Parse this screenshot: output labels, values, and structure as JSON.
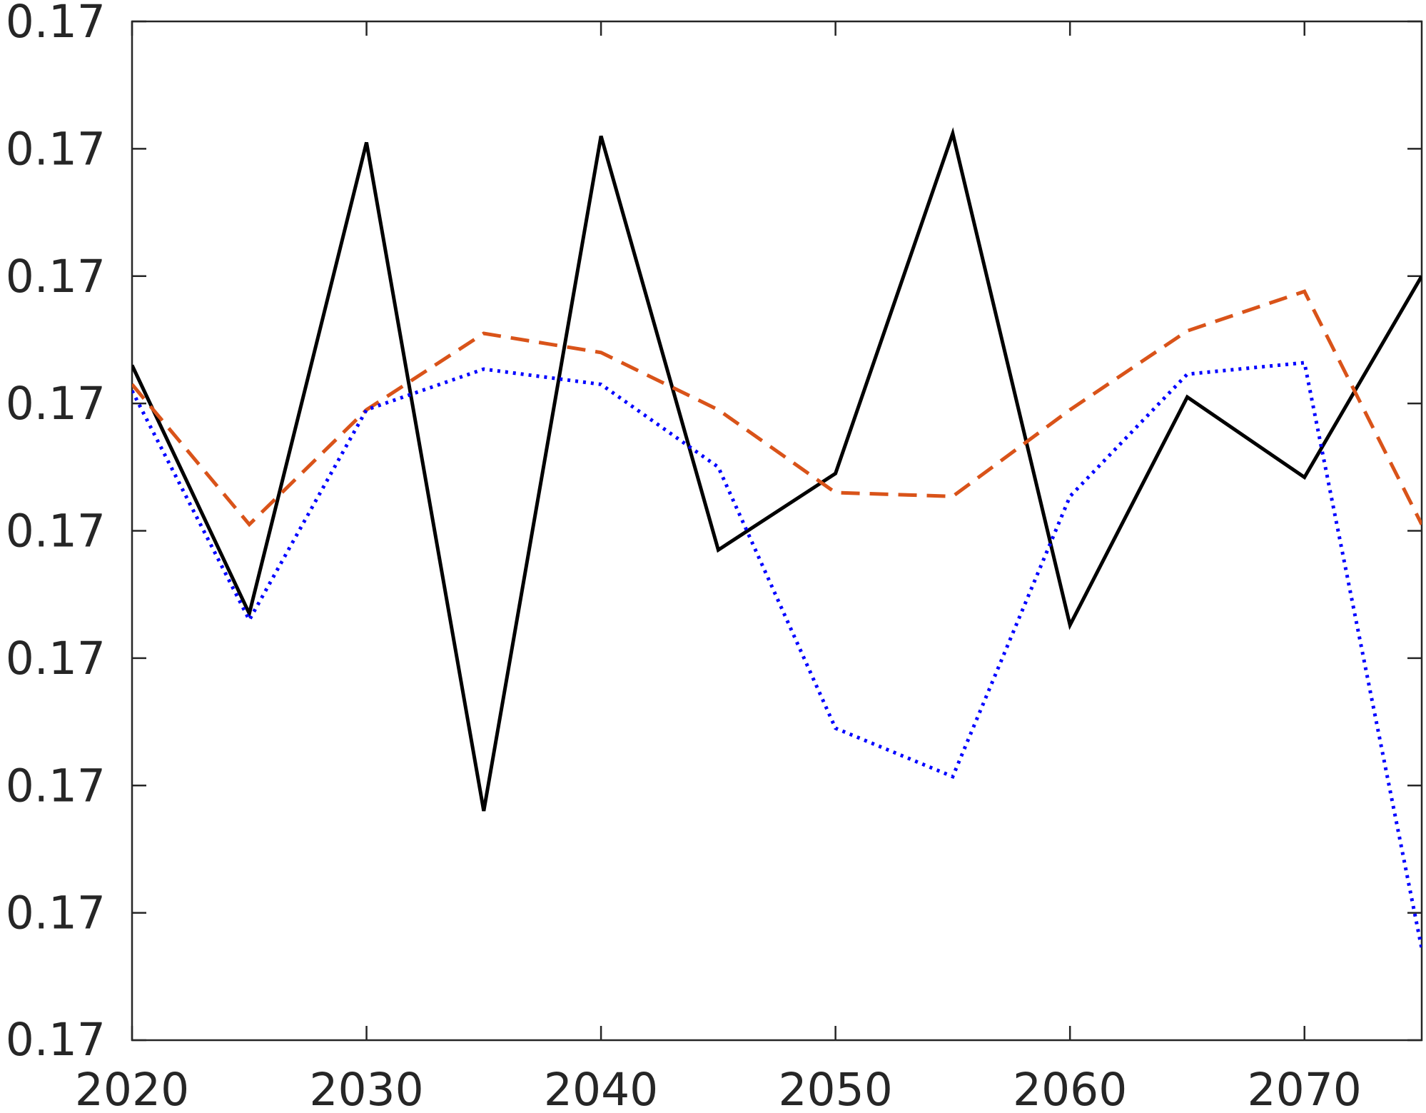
{
  "chart_data": {
    "type": "line",
    "title": "",
    "xlabel": "",
    "ylabel": "",
    "x": [
      2020,
      2025,
      2030,
      2035,
      2040,
      2045,
      2050,
      2055,
      2060,
      2065,
      2070,
      2075
    ],
    "xlim": [
      2020,
      2075
    ],
    "ylim": [
      0,
      8
    ],
    "x_ticks": [
      2020,
      2030,
      2040,
      2050,
      2060,
      2070
    ],
    "x_tick_labels": [
      "2020",
      "2030",
      "2040",
      "2050",
      "2060",
      "2070"
    ],
    "y_ticks": [
      0,
      1,
      2,
      3,
      4,
      5,
      6,
      7,
      8
    ],
    "y_tick_labels": [
      "0.17",
      "0.17",
      "0.17",
      "0.17",
      "0.17",
      "0.17",
      "0.17",
      "0.17",
      "0.17"
    ],
    "y_tick_note": "all y tick labels print 0.17; y values are in tick-step units from the bottom axis",
    "grid": false,
    "legend": "none",
    "series": [
      {
        "style": "solid",
        "color": "#000000",
        "values": [
          5.3,
          3.35,
          7.05,
          1.8,
          7.1,
          3.85,
          4.45,
          7.12,
          3.26,
          5.05,
          4.42,
          6.0
        ]
      },
      {
        "style": "dashed",
        "color": "#D95319",
        "values": [
          5.15,
          4.05,
          4.95,
          5.55,
          5.4,
          4.95,
          4.3,
          4.27,
          4.95,
          5.57,
          5.88,
          4.05
        ]
      },
      {
        "style": "dotted",
        "color": "#0000FF",
        "values": [
          5.1,
          3.3,
          4.95,
          5.27,
          5.15,
          4.5,
          2.45,
          2.07,
          4.27,
          5.23,
          5.32,
          0.72
        ]
      }
    ]
  }
}
